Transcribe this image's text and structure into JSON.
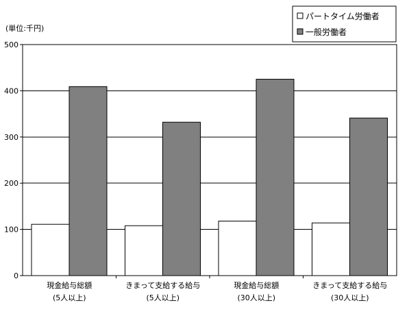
{
  "chart_data": {
    "type": "bar",
    "unit_label": "(単位:千円)",
    "categories": [
      [
        "現金給与総額",
        "(5人以上)"
      ],
      [
        "きまって支給する給与",
        "(5人以上)"
      ],
      [
        "現金給与総額",
        "(30人以上)"
      ],
      [
        "きまって支給する給与",
        "(30人以上)"
      ]
    ],
    "series": [
      {
        "name": "パートタイム労働者",
        "color": "#ffffff",
        "values": [
          111,
          108,
          118,
          114
        ]
      },
      {
        "name": "一般労働者",
        "color": "#808080",
        "values": [
          409,
          332,
          425,
          341
        ]
      }
    ],
    "ylim": [
      0,
      500
    ],
    "yticks": [
      0,
      100,
      200,
      300,
      400,
      500
    ],
    "grid": true,
    "legend_position": "top-right"
  }
}
